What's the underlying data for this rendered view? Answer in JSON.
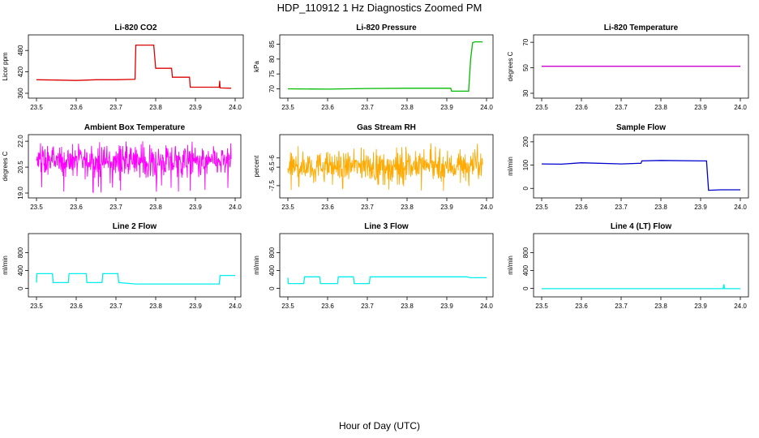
{
  "page": {
    "title": "HDP_110912  1 Hz Diagnostics Zoomed PM",
    "xlabel": "Hour of Day (UTC)"
  },
  "chart_data": [
    {
      "id": "p1",
      "type": "line",
      "title": "Li-820 CO2",
      "ylabel": "Licor ppm",
      "color": "#dd0000",
      "xlim": [
        23.5,
        24.0
      ],
      "ylim": [
        360,
        510
      ],
      "xticks": [
        "23.5",
        "23.6",
        "23.7",
        "23.8",
        "23.9",
        "24.0"
      ],
      "yticks": [
        "360",
        "420",
        "480"
      ],
      "series": [
        {
          "x": [
            23.5,
            23.55,
            23.6,
            23.65,
            23.7,
            23.748,
            23.75,
            23.795,
            23.8,
            23.84,
            23.842,
            23.885,
            23.887,
            23.96,
            23.961,
            23.962,
            23.99
          ],
          "y": [
            398,
            397,
            396,
            398,
            398,
            399,
            495,
            495,
            430,
            430,
            405,
            405,
            377,
            377,
            395,
            375,
            374
          ]
        }
      ]
    },
    {
      "id": "p2",
      "type": "line",
      "title": "Li-820 Pressure",
      "ylabel": "kPa",
      "color": "#00bb00",
      "xlim": [
        23.5,
        24.0
      ],
      "ylim": [
        68.5,
        86.5
      ],
      "xticks": [
        "23.5",
        "23.6",
        "23.7",
        "23.8",
        "23.9",
        "24.0"
      ],
      "yticks": [
        "70",
        "75",
        "80",
        "85"
      ],
      "series": [
        {
          "x": [
            23.5,
            23.6,
            23.7,
            23.8,
            23.91,
            23.912,
            23.955,
            23.96,
            23.965,
            23.97,
            23.99
          ],
          "y": [
            70.0,
            69.9,
            70.1,
            70.2,
            70.2,
            69.2,
            69.2,
            80.0,
            85.5,
            85.8,
            85.8
          ]
        }
      ]
    },
    {
      "id": "p3",
      "type": "line",
      "title": "Li-820 Temperature",
      "ylabel": "degrees C",
      "color": "#cc00cc",
      "xlim": [
        23.5,
        24.0
      ],
      "ylim": [
        30,
        72
      ],
      "xticks": [
        "23.5",
        "23.6",
        "23.7",
        "23.8",
        "23.9",
        "24.0"
      ],
      "yticks": [
        "30",
        "50",
        "70"
      ],
      "series": [
        {
          "x": [
            23.5,
            24.0
          ],
          "y": [
            51.2,
            51.2
          ]
        }
      ]
    },
    {
      "id": "p4",
      "type": "line",
      "title": "Ambient Box Temperature",
      "ylabel": "degrees C",
      "color": "#ff00ff",
      "xlim": [
        23.5,
        23.99
      ],
      "ylim": [
        19,
        22.1
      ],
      "xticks": [
        "23.5",
        "23.6",
        "23.7",
        "23.8",
        "23.9",
        "24.0"
      ],
      "yticks": [
        "19.0",
        "20.5",
        "22.0"
      ],
      "series": [
        {
          "noise": {
            "center": 20.8,
            "spread": 0.6,
            "min": 19.0,
            "max": 22.0
          }
        }
      ]
    },
    {
      "id": "p5",
      "type": "line",
      "title": "Gas Stream RH",
      "ylabel": "percent",
      "color": "#ffaa00",
      "xlim": [
        23.5,
        23.99
      ],
      "ylim": [
        -7.9,
        -5.0
      ],
      "xticks": [
        "23.5",
        "23.6",
        "23.7",
        "23.8",
        "23.9",
        "24.0"
      ],
      "yticks": [
        "-7.5",
        "-6.5",
        "-6"
      ],
      "series": [
        {
          "noise": {
            "center": -6.45,
            "spread": 0.55,
            "min": -7.8,
            "max": -5.2
          }
        }
      ]
    },
    {
      "id": "p6",
      "type": "line",
      "title": "Sample Flow",
      "ylabel": "ml/min",
      "color": "#0000cc",
      "xlim": [
        23.5,
        24.0
      ],
      "ylim": [
        -20,
        210
      ],
      "xticks": [
        "23.5",
        "23.6",
        "23.7",
        "23.8",
        "23.9",
        "24.0"
      ],
      "yticks": [
        "0",
        "100",
        "200"
      ],
      "series": [
        {
          "x": [
            23.5,
            23.55,
            23.6,
            23.7,
            23.75,
            23.752,
            23.8,
            23.9,
            23.915,
            23.92,
            23.95,
            24.0
          ],
          "y": [
            105,
            104,
            110,
            105,
            108,
            118,
            120,
            118,
            118,
            -8,
            -6,
            -6
          ]
        }
      ]
    },
    {
      "id": "p7",
      "type": "line",
      "title": "Line 2 Flow",
      "ylabel": "ml/min",
      "color": "#00eeee",
      "xlim": [
        23.5,
        24.0
      ],
      "ylim": [
        -80,
        1120
      ],
      "xticks": [
        "23.5",
        "23.6",
        "23.7",
        "23.8",
        "23.9",
        "24.0"
      ],
      "yticks": [
        "0",
        "400",
        "800"
      ],
      "series": [
        {
          "x": [
            23.5,
            23.501,
            23.54,
            23.542,
            23.58,
            23.582,
            23.625,
            23.627,
            23.665,
            23.667,
            23.705,
            23.707,
            23.75,
            23.96,
            23.962,
            24.0
          ],
          "y": [
            130,
            330,
            330,
            130,
            130,
            330,
            330,
            130,
            130,
            330,
            330,
            130,
            100,
            100,
            290,
            290
          ]
        }
      ]
    },
    {
      "id": "p8",
      "type": "line",
      "title": "Line 3 Flow",
      "ylabel": "ml/min",
      "color": "#00eeee",
      "xlim": [
        23.5,
        24.0
      ],
      "ylim": [
        -80,
        1120
      ],
      "xticks": [
        "23.5",
        "23.6",
        "23.7",
        "23.8",
        "23.9",
        "24.0"
      ],
      "yticks": [
        "0",
        "400",
        "800"
      ],
      "series": [
        {
          "x": [
            23.5,
            23.501,
            23.503,
            23.54,
            23.542,
            23.58,
            23.582,
            23.625,
            23.627,
            23.665,
            23.667,
            23.705,
            23.707,
            23.95,
            23.96,
            24.0
          ],
          "y": [
            240,
            110,
            110,
            110,
            260,
            260,
            110,
            110,
            260,
            260,
            110,
            110,
            260,
            260,
            240,
            240
          ]
        }
      ]
    },
    {
      "id": "p9",
      "type": "line",
      "title": "Line 4 (LT) Flow",
      "ylabel": "ml/min",
      "color": "#00eeee",
      "xlim": [
        23.5,
        24.0
      ],
      "ylim": [
        -80,
        1120
      ],
      "xticks": [
        "23.5",
        "23.6",
        "23.7",
        "23.8",
        "23.9",
        "24.0"
      ],
      "yticks": [
        "0",
        "400",
        "800"
      ],
      "series": [
        {
          "x": [
            23.5,
            23.957,
            23.958,
            23.959,
            23.96,
            24.0
          ],
          "y": [
            -5,
            -5,
            80,
            80,
            -5,
            -5
          ]
        }
      ]
    }
  ]
}
